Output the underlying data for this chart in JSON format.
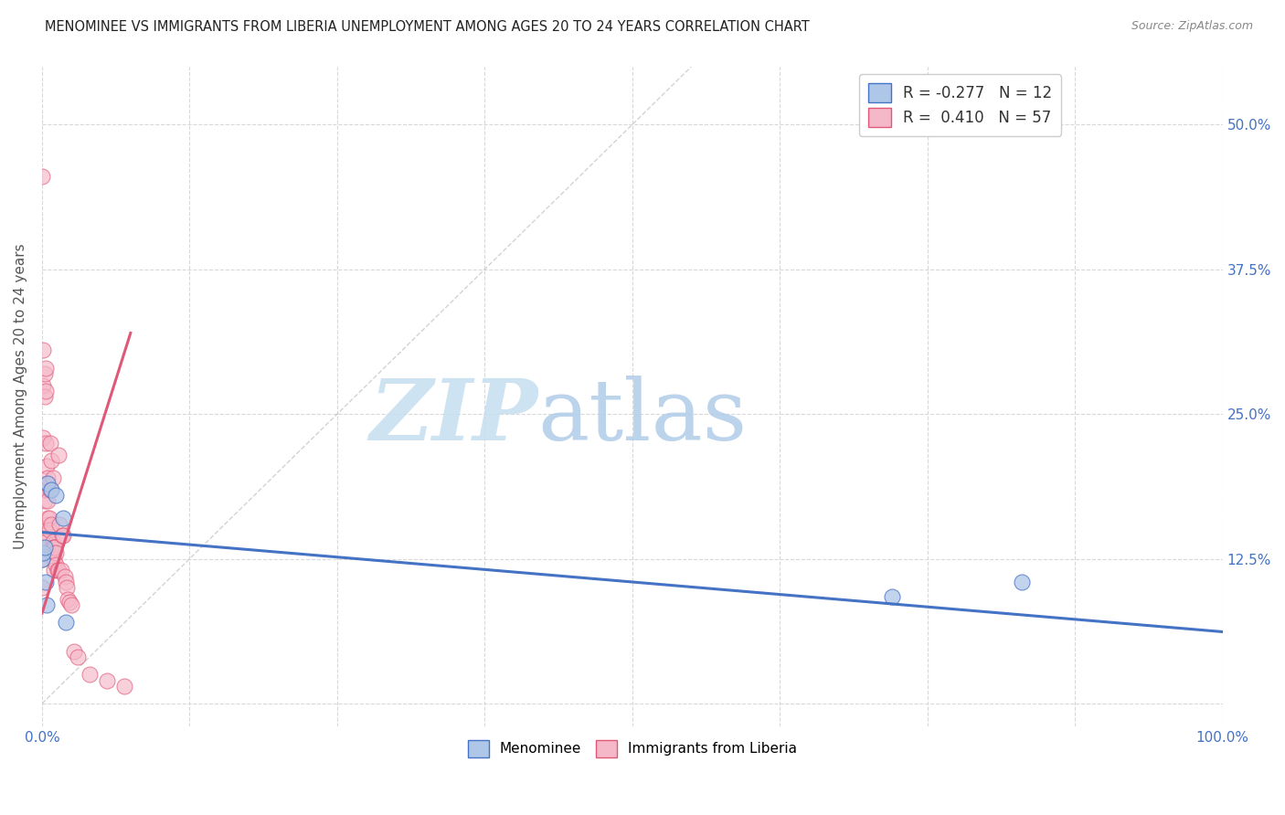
{
  "title": "MENOMINEE VS IMMIGRANTS FROM LIBERIA UNEMPLOYMENT AMONG AGES 20 TO 24 YEARS CORRELATION CHART",
  "source": "Source: ZipAtlas.com",
  "ylabel": "Unemployment Among Ages 20 to 24 years",
  "xlim": [
    0,
    1.0
  ],
  "ylim": [
    -0.02,
    0.55
  ],
  "x_ticks": [
    0.0,
    0.125,
    0.25,
    0.375,
    0.5,
    0.625,
    0.75,
    0.875,
    1.0
  ],
  "y_ticks": [
    0.0,
    0.125,
    0.25,
    0.375,
    0.5
  ],
  "y_tick_labels_right": [
    "",
    "12.5%",
    "25.0%",
    "37.5%",
    "50.0%"
  ],
  "menominee_color": "#aec6e8",
  "liberia_color": "#f5b8c8",
  "menominee_edge_color": "#4472c4",
  "liberia_edge_color": "#e05878",
  "menominee_line_color": "#4472c4",
  "liberia_line_color": "#e05878",
  "diagonal_color": "#c8c8c8",
  "background_color": "#ffffff",
  "grid_color": "#d8d8d8",
  "legend_R_menominee": "-0.277",
  "legend_N_menominee": "12",
  "legend_R_liberia": "0.410",
  "legend_N_liberia": "57",
  "menominee_x": [
    0.0,
    0.001,
    0.002,
    0.003,
    0.004,
    0.005,
    0.008,
    0.012,
    0.018,
    0.02,
    0.72,
    0.83
  ],
  "menominee_y": [
    0.125,
    0.13,
    0.135,
    0.105,
    0.085,
    0.19,
    0.185,
    0.18,
    0.16,
    0.07,
    0.092,
    0.105
  ],
  "liberia_x": [
    0.0,
    0.0,
    0.0,
    0.0,
    0.0,
    0.0,
    0.001,
    0.001,
    0.001,
    0.002,
    0.002,
    0.002,
    0.003,
    0.003,
    0.003,
    0.003,
    0.003,
    0.004,
    0.004,
    0.004,
    0.005,
    0.005,
    0.005,
    0.006,
    0.006,
    0.007,
    0.007,
    0.008,
    0.008,
    0.009,
    0.009,
    0.009,
    0.01,
    0.01,
    0.01,
    0.01,
    0.011,
    0.012,
    0.012,
    0.013,
    0.014,
    0.014,
    0.015,
    0.016,
    0.017,
    0.018,
    0.019,
    0.02,
    0.021,
    0.022,
    0.023,
    0.025,
    0.027,
    0.03,
    0.04,
    0.055,
    0.07
  ],
  "liberia_y": [
    0.455,
    0.145,
    0.135,
    0.13,
    0.125,
    0.1,
    0.305,
    0.275,
    0.23,
    0.285,
    0.265,
    0.175,
    0.29,
    0.27,
    0.225,
    0.185,
    0.14,
    0.205,
    0.19,
    0.155,
    0.195,
    0.175,
    0.16,
    0.16,
    0.15,
    0.225,
    0.185,
    0.21,
    0.155,
    0.195,
    0.14,
    0.135,
    0.135,
    0.13,
    0.125,
    0.115,
    0.135,
    0.13,
    0.12,
    0.115,
    0.215,
    0.115,
    0.155,
    0.115,
    0.145,
    0.145,
    0.11,
    0.105,
    0.1,
    0.09,
    0.088,
    0.085,
    0.045,
    0.04,
    0.025,
    0.02,
    0.015
  ],
  "menominee_trend_x0": 0.0,
  "menominee_trend_y0": 0.148,
  "menominee_trend_x1": 1.0,
  "menominee_trend_y1": 0.062,
  "liberia_trend_x0": 0.0,
  "liberia_trend_y0": 0.078,
  "liberia_trend_x1": 0.075,
  "liberia_trend_y1": 0.32,
  "watermark_zip": "ZIP",
  "watermark_atlas": "atlas",
  "watermark_color_zip": "#c8e0f0",
  "watermark_color_atlas": "#b8d8f0",
  "watermark_fontsize": 68
}
